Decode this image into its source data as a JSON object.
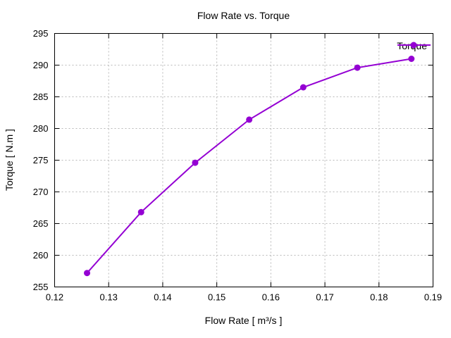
{
  "chart_data": {
    "type": "line",
    "title": "Flow Rate vs. Torque",
    "xlabel": "Flow Rate [ m³/s ]",
    "ylabel": "Torque [ N.m ]",
    "x": [
      0.126,
      0.136,
      0.146,
      0.156,
      0.166,
      0.176,
      0.186
    ],
    "series": [
      {
        "name": "Torque",
        "color": "#9400d3",
        "values": [
          257.2,
          266.8,
          274.6,
          281.4,
          286.5,
          289.6,
          291.0
        ]
      }
    ],
    "xlim": [
      0.12,
      0.19
    ],
    "ylim": [
      255,
      295
    ],
    "xticks": [
      0.12,
      0.13,
      0.14,
      0.15,
      0.16,
      0.17,
      0.18,
      0.19
    ],
    "xtick_labels": [
      "0.12",
      "0.13",
      "0.14",
      "0.15",
      "0.16",
      "0.17",
      "0.18",
      "0.19"
    ],
    "yticks": [
      255,
      260,
      265,
      270,
      275,
      280,
      285,
      290,
      295
    ],
    "ytick_labels": [
      "255",
      "260",
      "265",
      "270",
      "275",
      "280",
      "285",
      "290",
      "295"
    ],
    "grid": true,
    "grid_style": "dotted",
    "legend_position": "top-right",
    "frame_color": "#000000",
    "background_color": "#ffffff",
    "text_color": "#000000"
  }
}
